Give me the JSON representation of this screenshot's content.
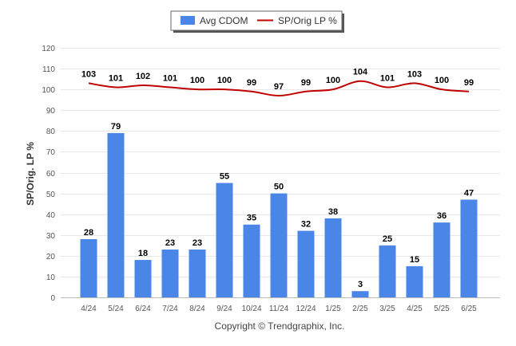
{
  "chart_data": {
    "type": "bar",
    "categories": [
      "4/24",
      "5/24",
      "6/24",
      "7/24",
      "8/24",
      "9/24",
      "10/24",
      "11/24",
      "12/24",
      "1/25",
      "2/25",
      "3/25",
      "4/25",
      "5/25",
      "6/25"
    ],
    "series": [
      {
        "name": "Avg CDOM",
        "type": "bar",
        "color": "#4a86e8",
        "values": [
          28,
          79,
          18,
          23,
          23,
          55,
          35,
          50,
          32,
          38,
          3,
          25,
          15,
          36,
          47
        ]
      },
      {
        "name": "SP/Orig LP %",
        "type": "line",
        "color": "#c00000",
        "values": [
          103,
          101,
          102,
          101,
          100,
          100,
          99,
          97,
          99,
          100,
          104,
          101,
          103,
          100,
          99
        ]
      }
    ],
    "ylabel": "SP/Orig. LP %",
    "xlabel": "",
    "ylim": [
      0,
      120
    ],
    "yticks": [
      0,
      10,
      20,
      30,
      40,
      50,
      60,
      70,
      80,
      90,
      100,
      110,
      120
    ],
    "grid": true,
    "legend": "top-center"
  },
  "footer": {
    "copyright": "Copyright © Trendgraphix, Inc."
  }
}
